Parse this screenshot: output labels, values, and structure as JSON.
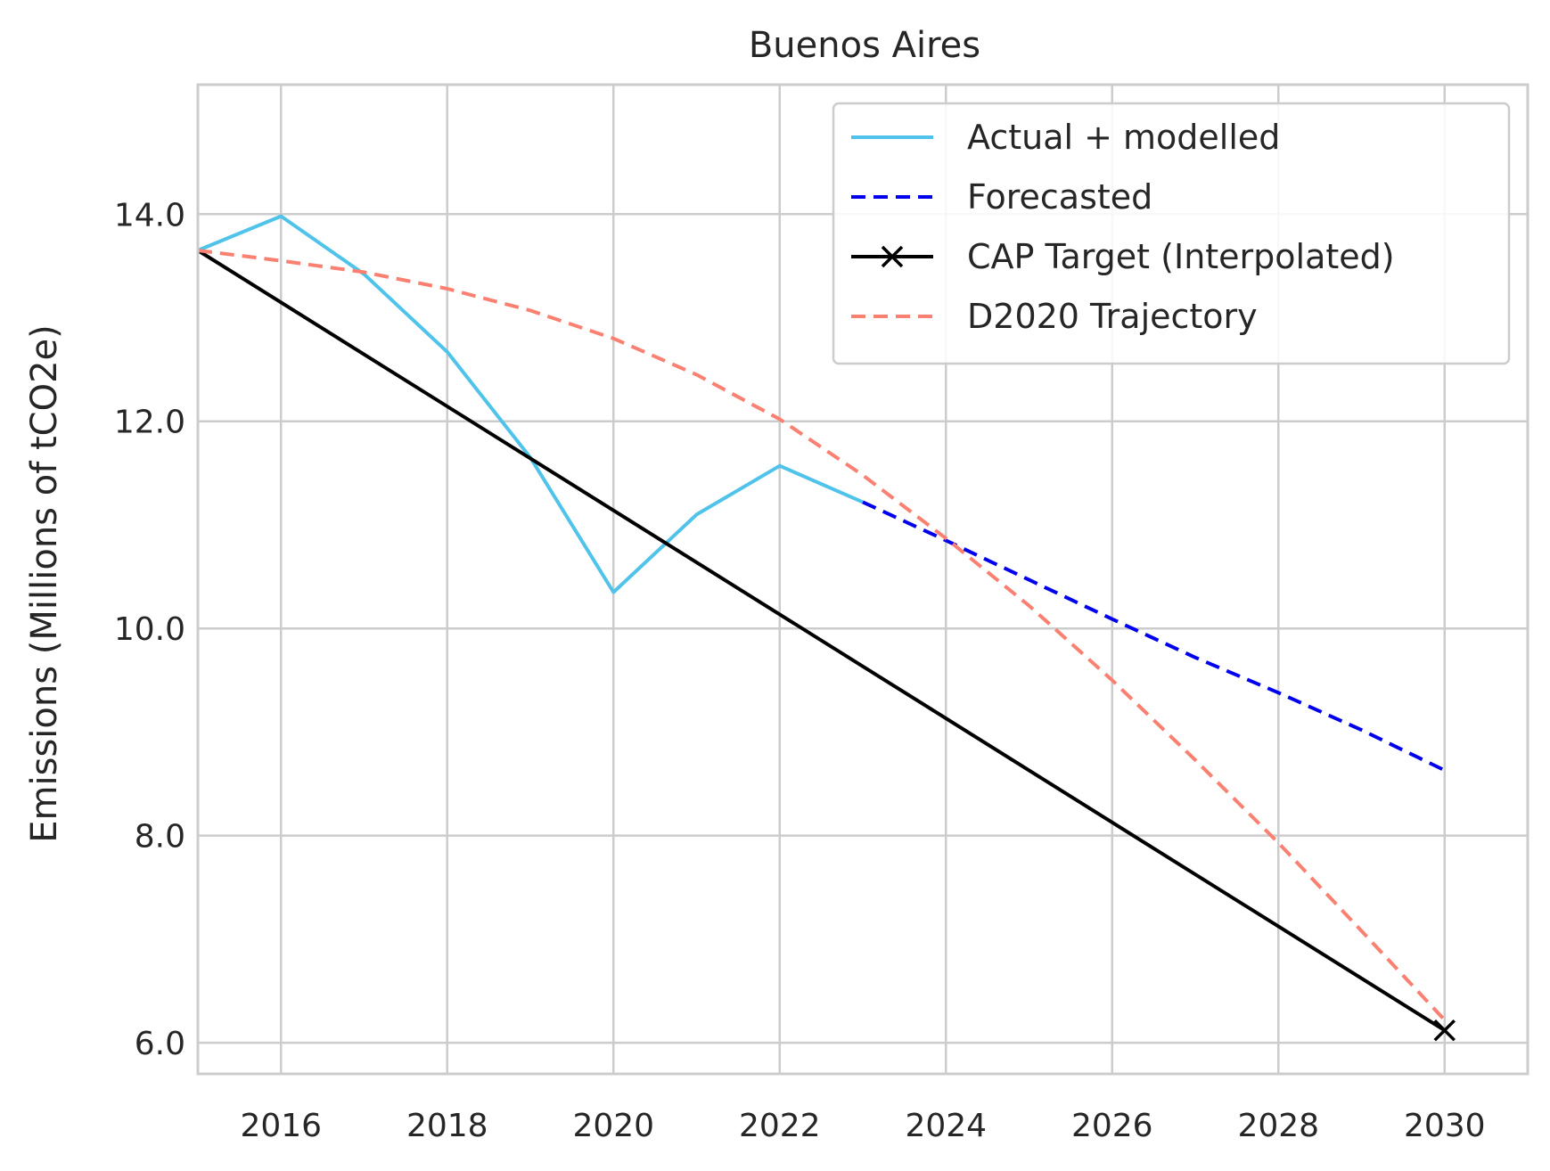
{
  "chart_data": {
    "type": "line",
    "title": "Buenos Aires",
    "xlabel": "",
    "ylabel": "Emissions (Millions of tCO2e)",
    "xlim": [
      2015,
      2031
    ],
    "ylim": [
      5.7,
      15.25
    ],
    "xticks": [
      2016,
      2018,
      2020,
      2022,
      2024,
      2026,
      2028,
      2030
    ],
    "yticks": [
      6.0,
      8.0,
      10.0,
      12.0,
      14.0
    ],
    "ytick_labels": [
      "6.0",
      "8.0",
      "10.0",
      "12.0",
      "14.0"
    ],
    "grid": true,
    "legend_position": "top-right",
    "series": [
      {
        "name": "Actual + modelled",
        "color": "#4fc3ea",
        "style": "solid",
        "marker": "none",
        "x": [
          2015,
          2016,
          2017,
          2018,
          2019,
          2020,
          2021,
          2022,
          2023
        ],
        "y": [
          13.65,
          13.98,
          13.42,
          12.67,
          11.65,
          10.35,
          11.1,
          11.57,
          11.22
        ]
      },
      {
        "name": "Forecasted",
        "color": "#0000ee",
        "style": "dashed",
        "marker": "none",
        "x": [
          2023,
          2024,
          2025,
          2026,
          2027,
          2028,
          2029,
          2030
        ],
        "y": [
          11.22,
          10.85,
          10.47,
          10.09,
          9.72,
          9.38,
          9.02,
          8.63
        ]
      },
      {
        "name": "CAP Target (Interpolated)",
        "color": "#000000",
        "style": "solid",
        "marker": "x-end",
        "x": [
          2015,
          2030
        ],
        "y": [
          13.65,
          6.12
        ]
      },
      {
        "name": "D2020 Trajectory",
        "color": "#fa8072",
        "style": "dashed",
        "marker": "none",
        "x": [
          2015,
          2016,
          2017,
          2018,
          2019,
          2020,
          2021,
          2022,
          2023,
          2024,
          2025,
          2026,
          2027,
          2028,
          2029,
          2030
        ],
        "y": [
          13.65,
          13.55,
          13.44,
          13.28,
          13.07,
          12.8,
          12.45,
          12.02,
          11.48,
          10.87,
          10.22,
          9.5,
          8.73,
          7.93,
          7.08,
          6.22
        ]
      }
    ]
  }
}
